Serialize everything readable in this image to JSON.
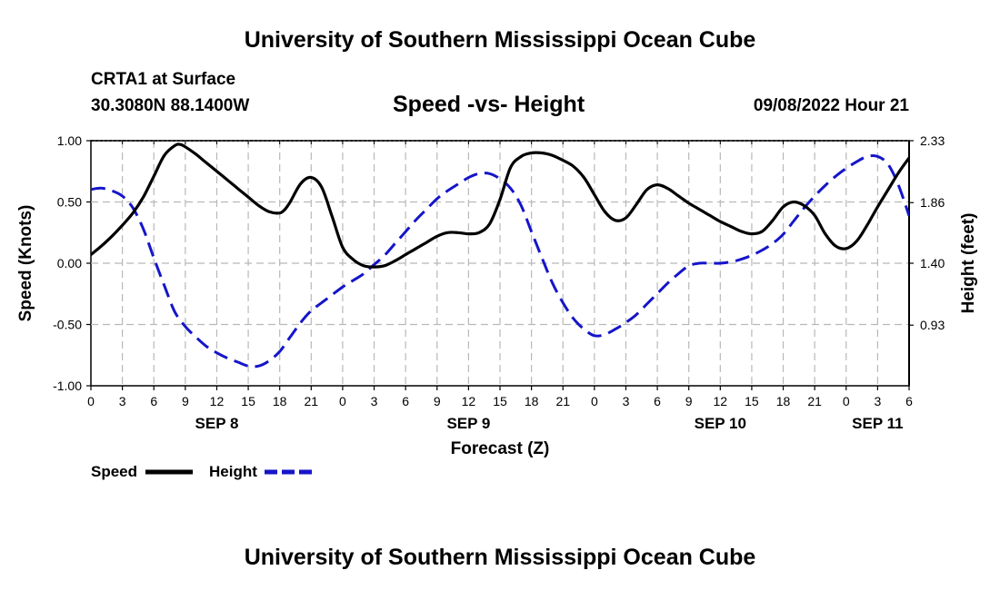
{
  "header": {
    "title": "University of Southern Mississippi Ocean Cube",
    "station_name": "CRTA1 at Surface",
    "station_coords": "30.3080N  88.1400W",
    "chart_subtitle": "Speed -vs- Height",
    "issue_time": "09/08/2022 Hour 21"
  },
  "footer": {
    "title": "University of Southern Mississippi Ocean Cube"
  },
  "chart_data": {
    "type": "line",
    "title": "Speed -vs- Height",
    "xlabel": "Forecast (Z)",
    "ylabel": "Speed (Knots)",
    "y2label": "Height (feet)",
    "grid": true,
    "xlim": [
      0,
      78
    ],
    "ylim": [
      -1.0,
      1.0
    ],
    "y2lim": [
      0.47,
      2.33
    ],
    "x_tick_hours": [
      0,
      3,
      6,
      9,
      12,
      15,
      18,
      21,
      24,
      27,
      30,
      33,
      36,
      39,
      42,
      45,
      48,
      51,
      54,
      57,
      60,
      63,
      66,
      69,
      72,
      75,
      78
    ],
    "x_tick_labels": [
      "0",
      "3",
      "6",
      "9",
      "12",
      "15",
      "18",
      "21",
      "0",
      "3",
      "6",
      "9",
      "12",
      "15",
      "18",
      "21",
      "0",
      "3",
      "6",
      "9",
      "12",
      "15",
      "18",
      "21",
      "0",
      "3",
      "6"
    ],
    "date_labels": [
      {
        "hour": 12,
        "label": "SEP 8"
      },
      {
        "hour": 36,
        "label": "SEP 9"
      },
      {
        "hour": 60,
        "label": "SEP 10"
      },
      {
        "hour": 75,
        "label": "SEP 11"
      }
    ],
    "y_ticks": [
      -1.0,
      -0.5,
      0.0,
      0.5,
      1.0
    ],
    "y_tick_labels": [
      "-1.00",
      "-0.50",
      "0.00",
      "0.50",
      "1.00"
    ],
    "y2_ticks": [
      0.93,
      1.4,
      1.86,
      2.33
    ],
    "y2_tick_labels": [
      "0.93",
      "1.40",
      "1.86",
      "2.33"
    ],
    "legend_position": "bottom-left",
    "series": [
      {
        "name": "Speed",
        "axis": "left",
        "color": "#000000",
        "dash": "solid",
        "x": [
          0,
          1,
          2,
          3,
          4,
          5,
          6,
          7,
          8,
          8.5,
          9,
          10,
          11,
          12,
          13,
          14,
          15,
          16,
          17,
          18,
          18.5,
          19,
          20,
          21,
          22,
          23,
          24,
          25,
          26,
          27,
          28,
          29,
          30,
          31,
          32,
          33,
          34,
          35,
          36,
          37,
          38,
          39,
          40,
          41,
          42,
          43,
          44,
          45,
          46,
          47,
          48,
          49,
          50,
          51,
          52,
          53,
          54,
          55,
          56,
          57,
          58,
          59,
          60,
          61,
          62,
          63,
          64,
          65,
          66,
          67,
          68,
          69,
          70,
          71,
          72,
          73,
          74,
          75,
          76,
          77,
          78
        ],
        "values": [
          0.07,
          0.14,
          0.22,
          0.31,
          0.41,
          0.54,
          0.71,
          0.88,
          0.96,
          0.97,
          0.95,
          0.89,
          0.82,
          0.75,
          0.68,
          0.61,
          0.54,
          0.47,
          0.42,
          0.41,
          0.44,
          0.5,
          0.65,
          0.7,
          0.62,
          0.38,
          0.13,
          0.03,
          -0.02,
          -0.03,
          -0.02,
          0.02,
          0.07,
          0.12,
          0.17,
          0.22,
          0.25,
          0.25,
          0.24,
          0.25,
          0.32,
          0.52,
          0.78,
          0.87,
          0.9,
          0.9,
          0.88,
          0.84,
          0.79,
          0.7,
          0.56,
          0.42,
          0.35,
          0.37,
          0.48,
          0.6,
          0.64,
          0.61,
          0.55,
          0.49,
          0.44,
          0.39,
          0.34,
          0.3,
          0.26,
          0.24,
          0.26,
          0.35,
          0.46,
          0.5,
          0.47,
          0.39,
          0.24,
          0.14,
          0.12,
          0.18,
          0.31,
          0.46,
          0.6,
          0.74,
          0.86
        ]
      },
      {
        "name": "Height",
        "axis": "right",
        "color": "#1515c9",
        "dash": "dashed",
        "x": [
          0,
          1,
          2,
          3,
          4,
          5,
          6,
          7,
          8,
          9,
          10,
          11,
          12,
          13,
          14,
          15,
          16,
          17,
          18,
          19,
          20,
          21,
          22,
          23,
          24,
          25,
          26,
          27,
          28,
          29,
          30,
          31,
          32,
          33,
          34,
          35,
          36,
          37,
          38,
          39,
          40,
          41,
          42,
          43,
          44,
          45,
          46,
          47,
          48,
          49,
          50,
          51,
          52,
          53,
          54,
          55,
          56,
          57,
          58,
          59,
          60,
          61,
          62,
          63,
          64,
          65,
          66,
          67,
          68,
          69,
          70,
          71,
          72,
          73,
          74,
          75,
          76,
          77,
          78
        ],
        "values": [
          1.96,
          1.97,
          1.95,
          1.91,
          1.82,
          1.66,
          1.44,
          1.23,
          1.03,
          0.92,
          0.84,
          0.77,
          0.72,
          0.68,
          0.65,
          0.62,
          0.62,
          0.66,
          0.73,
          0.84,
          0.95,
          1.04,
          1.1,
          1.16,
          1.22,
          1.27,
          1.32,
          1.39,
          1.46,
          1.55,
          1.64,
          1.73,
          1.81,
          1.89,
          1.95,
          2.0,
          2.05,
          2.08,
          2.08,
          2.04,
          1.97,
          1.84,
          1.64,
          1.44,
          1.25,
          1.1,
          0.98,
          0.9,
          0.85,
          0.86,
          0.9,
          0.95,
          1.01,
          1.09,
          1.17,
          1.25,
          1.32,
          1.38,
          1.4,
          1.4,
          1.4,
          1.41,
          1.43,
          1.46,
          1.5,
          1.55,
          1.62,
          1.72,
          1.82,
          1.91,
          1.99,
          2.06,
          2.12,
          2.17,
          2.21,
          2.21,
          2.15,
          1.99,
          1.76
        ]
      }
    ]
  }
}
